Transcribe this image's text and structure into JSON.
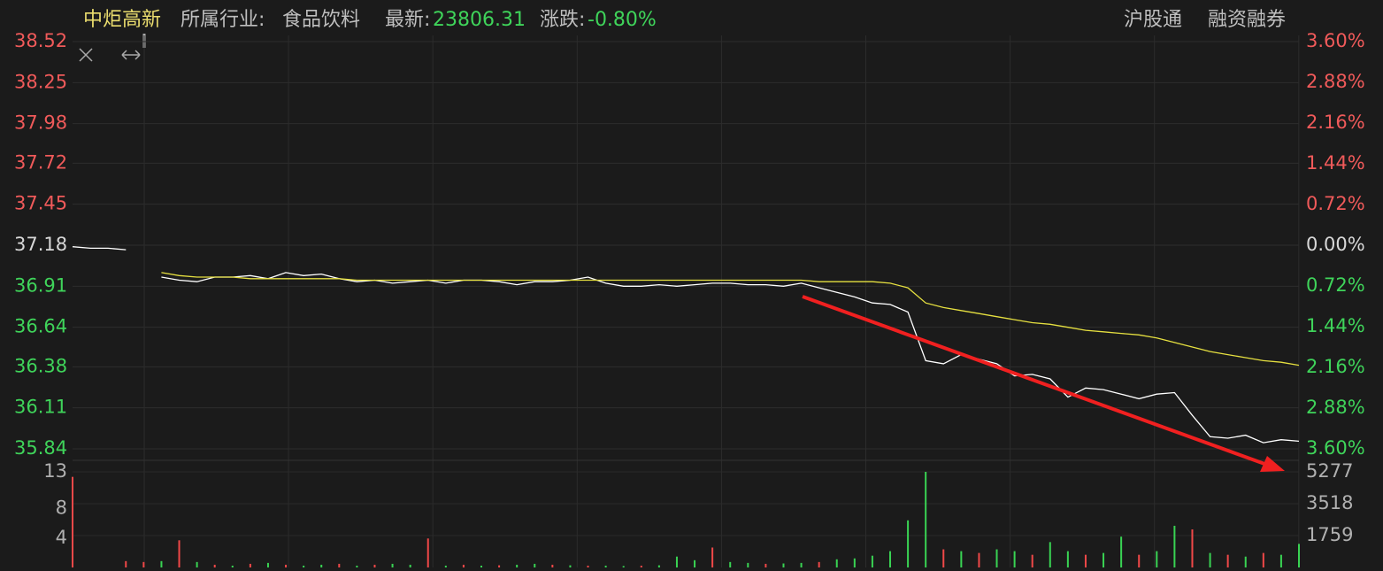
{
  "header": {
    "name": "中炬高新",
    "industry_label": "所属行业:",
    "industry": "食品饮料",
    "latest_label": "最新:",
    "latest": "23806.31",
    "change_label": "涨跌:",
    "change": "-0.80%",
    "links": [
      "沪股通",
      "融资融券"
    ]
  },
  "chart_data": [
    {
      "type": "line",
      "ylim": [
        35.84,
        38.52
      ],
      "yticks": [
        35.84,
        36.11,
        36.38,
        36.64,
        36.91,
        37.18,
        37.45,
        37.72,
        37.98,
        38.25,
        38.52
      ],
      "y2lim": [
        -3.6,
        3.6
      ],
      "y2ticks": [
        {
          "value": -3.6,
          "label": "3.60%"
        },
        {
          "value": -2.88,
          "label": "2.88%"
        },
        {
          "value": -2.16,
          "label": "2.16%"
        },
        {
          "value": -1.44,
          "label": "1.44%"
        },
        {
          "value": -0.72,
          "label": "0.72%"
        },
        {
          "value": 0,
          "label": "0.00%"
        },
        {
          "value": 0.72,
          "label": "0.72%"
        },
        {
          "value": 1.44,
          "label": "1.44%"
        },
        {
          "value": 2.16,
          "label": "2.16%"
        },
        {
          "value": 2.88,
          "label": "2.88%"
        },
        {
          "value": 3.6,
          "label": "3.60%"
        }
      ],
      "grid": true,
      "series": [
        {
          "color": "#ffffff",
          "values": [
            37.17,
            37.16,
            37.16,
            37.15,
            null,
            36.97,
            36.95,
            36.94,
            36.97,
            36.97,
            36.98,
            36.96,
            37.0,
            36.98,
            36.99,
            36.96,
            36.94,
            36.95,
            36.93,
            36.94,
            36.95,
            36.93,
            36.95,
            36.95,
            36.94,
            36.92,
            36.94,
            36.94,
            36.95,
            36.97,
            36.93,
            36.91,
            36.91,
            36.92,
            36.91,
            36.92,
            36.93,
            36.93,
            36.92,
            36.92,
            36.91,
            36.93,
            36.9,
            36.87,
            36.84,
            36.8,
            36.79,
            36.74,
            36.42,
            36.4,
            36.46,
            36.43,
            36.4,
            36.32,
            36.33,
            36.3,
            36.18,
            36.24,
            36.23,
            36.2,
            36.17,
            36.2,
            36.21,
            36.06,
            35.92,
            35.91,
            35.93,
            35.88,
            35.9,
            35.89
          ]
        },
        {
          "color": "#e6e040",
          "values": [
            null,
            null,
            null,
            null,
            null,
            37.0,
            36.98,
            36.97,
            36.97,
            36.97,
            36.96,
            36.96,
            36.96,
            36.96,
            36.96,
            36.96,
            36.95,
            36.95,
            36.95,
            36.95,
            36.95,
            36.95,
            36.95,
            36.95,
            36.95,
            36.95,
            36.95,
            36.95,
            36.95,
            36.95,
            36.95,
            36.95,
            36.95,
            36.95,
            36.95,
            36.95,
            36.95,
            36.95,
            36.95,
            36.95,
            36.95,
            36.95,
            36.94,
            36.94,
            36.94,
            36.94,
            36.93,
            36.9,
            36.8,
            36.77,
            36.75,
            36.73,
            36.71,
            36.69,
            36.67,
            36.66,
            36.64,
            36.62,
            36.61,
            36.6,
            36.59,
            36.57,
            36.54,
            36.51,
            36.48,
            36.46,
            36.44,
            36.42,
            36.41,
            36.39
          ]
        }
      ]
    },
    {
      "type": "bar",
      "ylim": [
        0,
        13
      ],
      "yticks": [
        4,
        8,
        13
      ],
      "y2lim": [
        0,
        5277
      ],
      "y2ticks": [
        1759,
        3518,
        5277
      ],
      "series": [
        {
          "axis": "y2",
          "values": [
            5000,
            0,
            0,
            350,
            300,
            350,
            1500,
            300,
            150,
            100,
            200,
            250,
            150,
            100,
            150,
            200,
            100,
            150,
            200,
            150,
            1600,
            100,
            150,
            100,
            120,
            150,
            200,
            150,
            120,
            100,
            100,
            80,
            100,
            120,
            600,
            400,
            1100,
            300,
            250,
            200,
            220,
            250,
            300,
            450,
            500,
            650,
            900,
            2600,
            5277,
            1000,
            900,
            800,
            1000,
            900,
            700,
            1400,
            900,
            700,
            800,
            1700,
            700,
            900,
            2300,
            2100,
            800,
            700,
            600,
            800,
            700,
            1300
          ],
          "colors": [
            "#f04848",
            "#f04848",
            "#f04848",
            "#f04848",
            "#f04848",
            "#39d353",
            "#f04848",
            "#39d353",
            "#f04848",
            "#39d353",
            "#f04848",
            "#39d353",
            "#f04848",
            "#39d353",
            "#39d353",
            "#f04848",
            "#39d353",
            "#f04848",
            "#39d353",
            "#39d353",
            "#f04848",
            "#39d353",
            "#f04848",
            "#39d353",
            "#f04848",
            "#39d353",
            "#39d353",
            "#f04848",
            "#39d353",
            "#f04848",
            "#39d353",
            "#39d353",
            "#f04848",
            "#39d353",
            "#39d353",
            "#39d353",
            "#f04848",
            "#39d353",
            "#39d353",
            "#f04848",
            "#39d353",
            "#39d353",
            "#f04848",
            "#39d353",
            "#39d353",
            "#39d353",
            "#39d353",
            "#39d353",
            "#39d353",
            "#f04848",
            "#39d353",
            "#f04848",
            "#39d353",
            "#39d353",
            "#f04848",
            "#39d353",
            "#39d353",
            "#f04848",
            "#39d353",
            "#39d353",
            "#f04848",
            "#39d353",
            "#39d353",
            "#f04848",
            "#39d353",
            "#f04848",
            "#39d353",
            "#f04848",
            "#39d353",
            "#39d353"
          ]
        }
      ]
    }
  ]
}
